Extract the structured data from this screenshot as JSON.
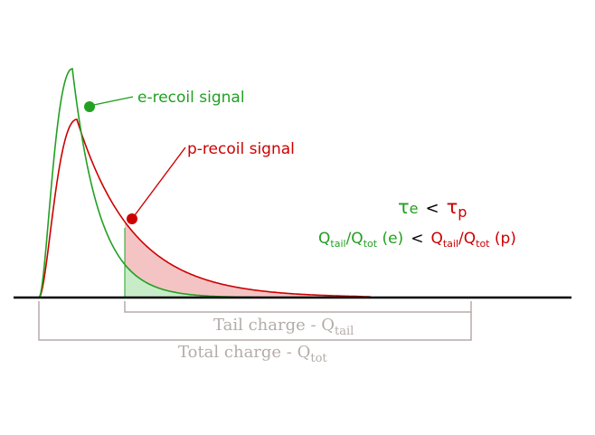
{
  "labels": {
    "e_recoil": "e-recoil signal",
    "p_recoil": "p-recoil signal",
    "tau_symbol": "τ",
    "tau_e_sub": "e",
    "tau_lt": "<",
    "tau_p_sub": "p",
    "q_left": {
      "q1": "Q",
      "sub1": "tail",
      "slash": "/",
      "q2": "Q",
      "sub2": "tot",
      "tag": " (e)"
    },
    "q_lt": "<",
    "q_right": {
      "q1": "Q",
      "sub1": "tail",
      "slash": "/",
      "q2": "Q",
      "sub2": "tot",
      "tag": " (p)"
    },
    "tail_charge": {
      "text": "Tail charge - Q",
      "sub": "tail"
    },
    "total_charge": {
      "text": "Total charge - Q",
      "sub": "tot"
    }
  },
  "colors": {
    "green": "#22a022",
    "red": "#cc0000",
    "green_fill": "#c8ecc8",
    "red_fill": "#f4c4c4",
    "bracket": "#b5aca8",
    "axis": "#000000"
  }
}
